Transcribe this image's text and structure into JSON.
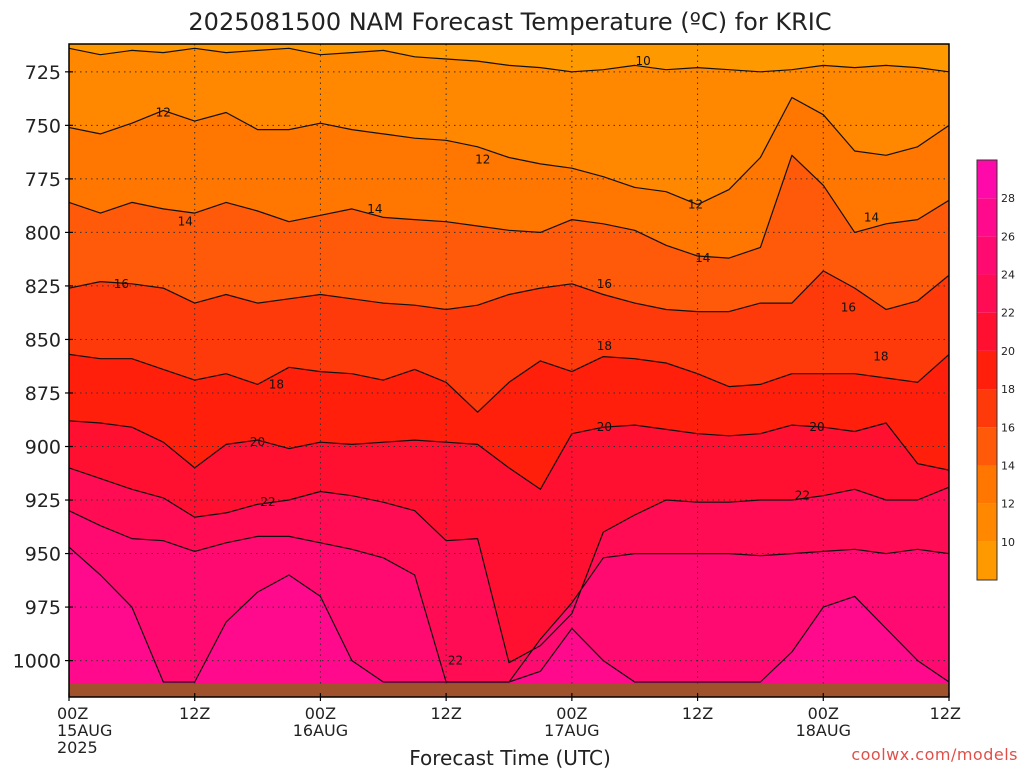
{
  "chart_data": {
    "type": "heatmap",
    "title": "2025081500 NAM Forecast Temperature (ºC) for KRIC",
    "xlabel": "Forecast Time (UTC)",
    "ylabel": "",
    "watermark": "coolwx.com/models",
    "x_ticks": [
      {
        "hours": 0,
        "line1": "00Z",
        "line2": "15AUG",
        "line3": "2025"
      },
      {
        "hours": 12,
        "line1": "12Z",
        "line2": "",
        "line3": ""
      },
      {
        "hours": 24,
        "line1": "00Z",
        "line2": "16AUG",
        "line3": ""
      },
      {
        "hours": 36,
        "line1": "12Z",
        "line2": "",
        "line3": ""
      },
      {
        "hours": 48,
        "line1": "00Z",
        "line2": "17AUG",
        "line3": ""
      },
      {
        "hours": 60,
        "line1": "12Z",
        "line2": "",
        "line3": ""
      },
      {
        "hours": 72,
        "line1": "00Z",
        "line2": "18AUG",
        "line3": ""
      },
      {
        "hours": 84,
        "line1": "12Z",
        "line2": "",
        "line3": ""
      }
    ],
    "xlim_hours": [
      0,
      84
    ],
    "y_ticks_hpa": [
      725,
      750,
      775,
      800,
      825,
      850,
      875,
      900,
      925,
      950,
      975,
      1000
    ],
    "ylim_hpa": [
      712,
      1017
    ],
    "grid": "dotted",
    "colorbar": {
      "position": "right",
      "labels": [
        "10",
        "12",
        "14",
        "16",
        "18",
        "20",
        "22",
        "24",
        "26",
        "28"
      ],
      "bands": [
        {
          "from": 8,
          "to": 10,
          "color": "#FF9900"
        },
        {
          "from": 10,
          "to": 12,
          "color": "#FF8800"
        },
        {
          "from": 12,
          "to": 14,
          "color": "#FF7700"
        },
        {
          "from": 14,
          "to": 16,
          "color": "#FF5A0A"
        },
        {
          "from": 16,
          "to": 18,
          "color": "#FF3A0A"
        },
        {
          "from": 18,
          "to": 20,
          "color": "#FF1F0A"
        },
        {
          "from": 20,
          "to": 22,
          "color": "#FF1030"
        },
        {
          "from": 22,
          "to": 24,
          "color": "#FF0C55"
        },
        {
          "from": 24,
          "to": 26,
          "color": "#FF0A70"
        },
        {
          "from": 26,
          "to": 28,
          "color": "#FF0A8C"
        },
        {
          "from": 28,
          "to": 30,
          "color": "#FF0AAA"
        }
      ]
    },
    "ground_color": "#A0522D",
    "isotherms": [
      {
        "value": 10,
        "x": [
          0,
          3,
          6,
          9,
          12,
          15,
          18,
          21,
          24,
          27,
          30,
          33,
          36,
          39,
          42,
          45,
          48,
          51,
          54,
          57,
          60,
          63,
          66,
          69,
          72,
          75,
          78,
          81,
          84
        ],
        "p": [
          714,
          717,
          715,
          716,
          714,
          716,
          715,
          714,
          717,
          716,
          715,
          718,
          719,
          720,
          722,
          723,
          725,
          724,
          722,
          724,
          723,
          724,
          725,
          724,
          722,
          723,
          722,
          723,
          725
        ]
      },
      {
        "value": 12,
        "x": [
          0,
          3,
          6,
          9,
          12,
          15,
          18,
          21,
          24,
          27,
          30,
          33,
          36,
          39,
          42,
          45,
          48,
          51,
          54,
          57,
          60,
          63,
          66,
          69,
          72,
          75,
          78,
          81,
          84
        ],
        "p": [
          751,
          754,
          749,
          743,
          748,
          744,
          752,
          752,
          749,
          752,
          754,
          756,
          757,
          760,
          765,
          768,
          770,
          774,
          779,
          781,
          787,
          780,
          765,
          737,
          745,
          762,
          764,
          760,
          750
        ]
      },
      {
        "value": 14,
        "x": [
          0,
          3,
          6,
          9,
          12,
          15,
          18,
          21,
          24,
          27,
          30,
          33,
          36,
          39,
          42,
          45,
          48,
          51,
          54,
          57,
          60,
          63,
          66,
          69,
          72,
          75,
          78,
          81,
          84
        ],
        "p": [
          786,
          791,
          786,
          789,
          791,
          786,
          790,
          795,
          792,
          789,
          793,
          794,
          795,
          797,
          799,
          800,
          794,
          796,
          799,
          806,
          811,
          812,
          807,
          764,
          778,
          800,
          796,
          794,
          785
        ]
      },
      {
        "value": 16,
        "x": [
          0,
          3,
          6,
          9,
          12,
          15,
          18,
          21,
          24,
          27,
          30,
          33,
          36,
          39,
          42,
          45,
          48,
          51,
          54,
          57,
          60,
          63,
          66,
          69,
          72,
          75,
          78,
          81,
          84
        ],
        "p": [
          826,
          823,
          824,
          826,
          833,
          829,
          833,
          831,
          829,
          831,
          833,
          834,
          836,
          834,
          829,
          826,
          824,
          829,
          833,
          836,
          837,
          837,
          833,
          833,
          818,
          826,
          836,
          832,
          820
        ]
      },
      {
        "value": 18,
        "x": [
          0,
          3,
          6,
          9,
          12,
          15,
          18,
          21,
          24,
          27,
          30,
          33,
          36,
          39,
          42,
          45,
          48,
          51,
          54,
          57,
          60,
          63,
          66,
          69,
          72,
          75,
          78,
          81,
          84
        ],
        "p": [
          857,
          859,
          859,
          864,
          869,
          866,
          871,
          863,
          865,
          866,
          869,
          864,
          870,
          884,
          870,
          860,
          865,
          858,
          859,
          861,
          866,
          872,
          871,
          866,
          866,
          866,
          868,
          870,
          857
        ]
      },
      {
        "value": 20,
        "x": [
          0,
          3,
          6,
          9,
          12,
          15,
          18,
          21,
          24,
          27,
          30,
          33,
          36,
          39,
          42,
          45,
          48,
          51,
          54,
          57,
          60,
          63,
          66,
          69,
          72,
          75,
          78,
          81,
          84
        ],
        "p": [
          888,
          889,
          891,
          898,
          910,
          899,
          897,
          901,
          898,
          899,
          898,
          897,
          898,
          899,
          910,
          920,
          894,
          891,
          890,
          892,
          894,
          895,
          894,
          890,
          891,
          893,
          889,
          908,
          911
        ]
      },
      {
        "value": 22,
        "x": [
          0,
          3,
          6,
          9,
          12,
          15,
          18,
          21,
          24,
          27,
          30,
          33,
          36,
          39,
          42,
          45,
          48,
          51,
          54,
          57,
          60,
          63,
          66,
          69,
          72,
          75,
          78,
          81,
          84
        ],
        "p": [
          910,
          915,
          920,
          924,
          933,
          931,
          927,
          925,
          921,
          923,
          926,
          930,
          944,
          943,
          1001,
          993,
          978,
          940,
          932,
          925,
          926,
          926,
          925,
          925,
          923,
          920,
          925,
          925,
          919
        ]
      },
      {
        "value": 24,
        "x": [
          0,
          3,
          6,
          9,
          12,
          15,
          18,
          21,
          24,
          27,
          30,
          33,
          36,
          39,
          42,
          45,
          48,
          51,
          54,
          57,
          60,
          63,
          66,
          69,
          72,
          75,
          78,
          81,
          84
        ],
        "p": [
          930,
          937,
          943,
          944,
          949,
          945,
          942,
          942,
          945,
          948,
          952,
          960,
          1010,
          1010,
          1010,
          990,
          973,
          952,
          950,
          950,
          950,
          950,
          951,
          950,
          949,
          948,
          950,
          948,
          950
        ]
      },
      {
        "value": 26,
        "x": [
          0,
          3,
          6,
          9,
          12,
          15,
          18,
          21,
          24,
          27,
          30,
          33,
          36,
          39,
          42,
          45,
          48,
          51,
          54,
          57,
          60,
          63,
          66,
          69,
          72,
          75,
          78,
          81,
          84
        ],
        "p": [
          947,
          960,
          975,
          1010,
          1010,
          982,
          968,
          960,
          970,
          1000,
          1010,
          1010,
          1010,
          1010,
          1010,
          1005,
          985,
          1000,
          1010,
          1010,
          1010,
          1010,
          1010,
          996,
          975,
          970,
          985,
          1000,
          1010
        ]
      }
    ],
    "isotherm_labels": [
      {
        "text": "10",
        "hours": 54.8,
        "p": 720
      },
      {
        "text": "12",
        "hours": 9.0,
        "p": 744
      },
      {
        "text": "12",
        "hours": 39.5,
        "p": 766
      },
      {
        "text": "12",
        "hours": 59.8,
        "p": 787
      },
      {
        "text": "14",
        "hours": 11.1,
        "p": 795
      },
      {
        "text": "14",
        "hours": 29.2,
        "p": 789
      },
      {
        "text": "14",
        "hours": 60.5,
        "p": 812
      },
      {
        "text": "14",
        "hours": 76.6,
        "p": 793
      },
      {
        "text": "16",
        "hours": 5.0,
        "p": 824
      },
      {
        "text": "16",
        "hours": 51.1,
        "p": 824
      },
      {
        "text": "16",
        "hours": 74.4,
        "p": 835
      },
      {
        "text": "18",
        "hours": 19.8,
        "p": 871
      },
      {
        "text": "18",
        "hours": 51.1,
        "p": 853
      },
      {
        "text": "18",
        "hours": 77.5,
        "p": 858
      },
      {
        "text": "20",
        "hours": 18.0,
        "p": 898
      },
      {
        "text": "20",
        "hours": 51.1,
        "p": 891
      },
      {
        "text": "20",
        "hours": 71.4,
        "p": 891
      },
      {
        "text": "22",
        "hours": 19.0,
        "p": 926
      },
      {
        "text": "22",
        "hours": 36.9,
        "p": 1000
      },
      {
        "text": "22",
        "hours": 70.0,
        "p": 923
      }
    ]
  }
}
